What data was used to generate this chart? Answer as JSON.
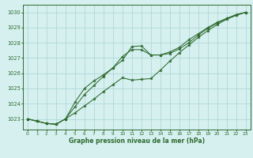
{
  "title": "Graphe pression niveau de la mer (hPa)",
  "background_color": "#d6f0f0",
  "grid_color": "#b0d8d8",
  "line_color": "#2d6a2d",
  "marker_color": "#2d6a2d",
  "xlim": [
    -0.5,
    23.5
  ],
  "ylim": [
    1022.3,
    1030.5
  ],
  "xticks": [
    0,
    1,
    2,
    3,
    4,
    5,
    6,
    7,
    8,
    9,
    10,
    11,
    12,
    13,
    14,
    15,
    16,
    17,
    18,
    19,
    20,
    21,
    22,
    23
  ],
  "yticks": [
    1023,
    1024,
    1025,
    1026,
    1027,
    1028,
    1029,
    1030
  ],
  "series": [
    [
      1023.0,
      1022.85,
      1022.7,
      1022.65,
      1023.0,
      1023.8,
      1024.6,
      1025.2,
      1025.8,
      1026.35,
      1027.1,
      1027.55,
      1027.55,
      1027.2,
      1027.2,
      1027.4,
      1027.7,
      1028.2,
      1028.6,
      1029.0,
      1029.35,
      1029.6,
      1029.85,
      1030.0
    ],
    [
      1023.0,
      1022.85,
      1022.7,
      1022.65,
      1023.0,
      1023.4,
      1023.85,
      1024.3,
      1024.8,
      1025.25,
      1025.7,
      1025.55,
      1025.6,
      1025.65,
      1026.2,
      1026.8,
      1027.35,
      1027.85,
      1028.35,
      1028.8,
      1029.2,
      1029.55,
      1029.8,
      1030.0
    ],
    [
      1023.0,
      1022.85,
      1022.7,
      1022.65,
      1023.0,
      1024.1,
      1025.0,
      1025.5,
      1025.9,
      1026.35,
      1026.85,
      1027.75,
      1027.8,
      1027.2,
      1027.2,
      1027.3,
      1027.6,
      1028.0,
      1028.5,
      1028.95,
      1029.3,
      1029.6,
      1029.85,
      1030.0
    ]
  ]
}
